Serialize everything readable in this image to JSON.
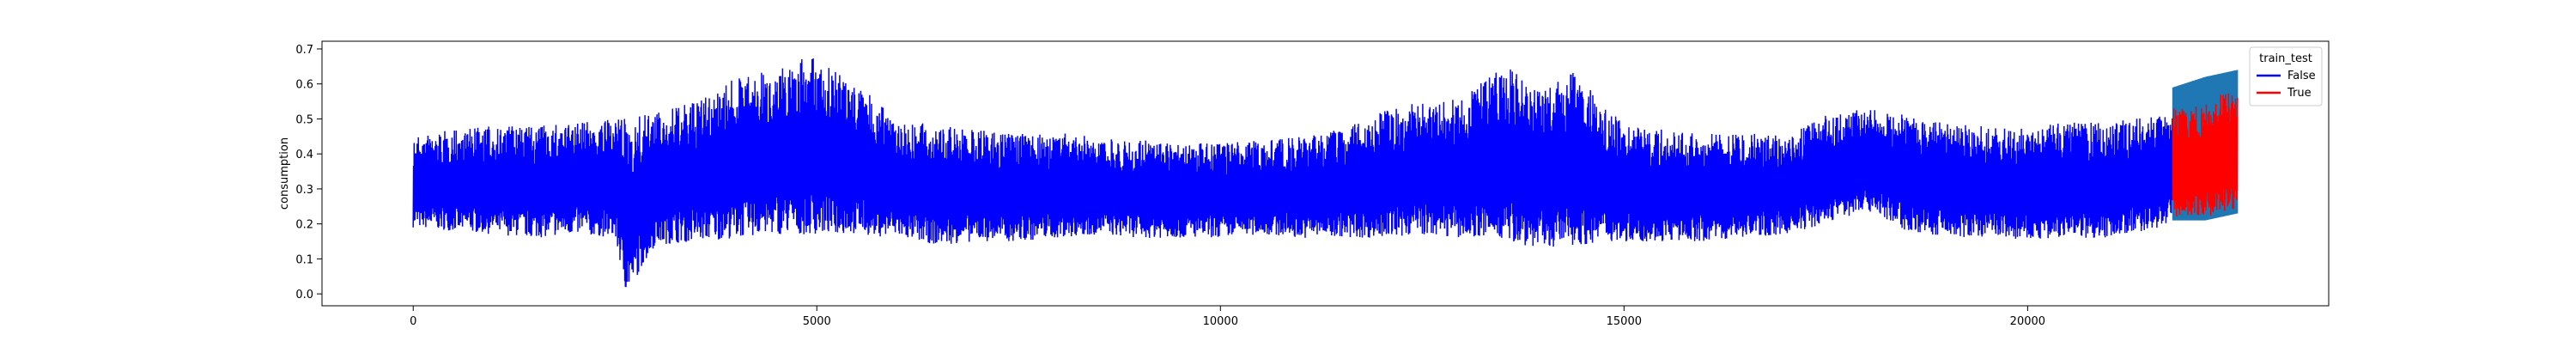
{
  "chart_data": {
    "type": "line",
    "title": "",
    "xlabel": "",
    "ylabel": "consumption",
    "xlim": [
      -1130,
      23730
    ],
    "ylim": [
      -0.034,
      0.722
    ],
    "x_ticks": [
      0,
      5000,
      10000,
      15000,
      20000
    ],
    "y_ticks": [
      0.0,
      0.1,
      0.2,
      0.3,
      0.4,
      0.5,
      0.6,
      0.7
    ],
    "x_tick_labels": [
      "0",
      "5000",
      "10000",
      "15000",
      "20000"
    ],
    "y_tick_labels": [
      "0.0",
      "0.1",
      "0.2",
      "0.3",
      "0.4",
      "0.5",
      "0.6",
      "0.7"
    ],
    "grid": false,
    "legend": {
      "title": "train_test",
      "placement": "top-right",
      "entries": [
        {
          "label": "False",
          "color": "#0000ff"
        },
        {
          "label": "True",
          "color": "#ff0000"
        }
      ]
    },
    "series": [
      {
        "name": "False",
        "color": "#0000ff",
        "x": [
          0,
          500,
          1000,
          1500,
          2000,
          2500,
          2640,
          3000,
          3500,
          4000,
          4500,
          4900,
          5500,
          6000,
          6500,
          7000,
          7500,
          8000,
          8500,
          9000,
          9500,
          10000,
          10500,
          11000,
          11500,
          12000,
          12500,
          13000,
          13500,
          14000,
          14400,
          15000,
          15500,
          16000,
          16500,
          17000,
          17500,
          18000,
          18500,
          19000,
          19500,
          20000,
          20500,
          21000,
          21500,
          21800
        ],
        "upper": [
          0.45,
          0.47,
          0.48,
          0.48,
          0.49,
          0.5,
          0.5,
          0.52,
          0.55,
          0.62,
          0.64,
          0.68,
          0.6,
          0.5,
          0.48,
          0.47,
          0.46,
          0.46,
          0.45,
          0.44,
          0.43,
          0.43,
          0.44,
          0.45,
          0.47,
          0.52,
          0.55,
          0.56,
          0.66,
          0.58,
          0.64,
          0.48,
          0.47,
          0.46,
          0.46,
          0.45,
          0.51,
          0.53,
          0.51,
          0.49,
          0.48,
          0.48,
          0.49,
          0.49,
          0.51,
          0.52
        ],
        "lower": [
          0.19,
          0.18,
          0.17,
          0.16,
          0.17,
          0.16,
          0.0,
          0.14,
          0.15,
          0.16,
          0.17,
          0.17,
          0.17,
          0.16,
          0.14,
          0.15,
          0.15,
          0.16,
          0.17,
          0.16,
          0.16,
          0.16,
          0.17,
          0.16,
          0.16,
          0.16,
          0.17,
          0.16,
          0.15,
          0.13,
          0.14,
          0.15,
          0.15,
          0.15,
          0.16,
          0.17,
          0.2,
          0.24,
          0.18,
          0.16,
          0.16,
          0.15,
          0.16,
          0.16,
          0.18,
          0.2
        ]
      },
      {
        "name": "True",
        "color": "#ff0000",
        "x": [
          21800,
          22200,
          22600
        ],
        "upper": [
          0.53,
          0.56,
          0.58
        ],
        "lower": [
          0.22,
          0.22,
          0.24
        ]
      }
    ]
  }
}
